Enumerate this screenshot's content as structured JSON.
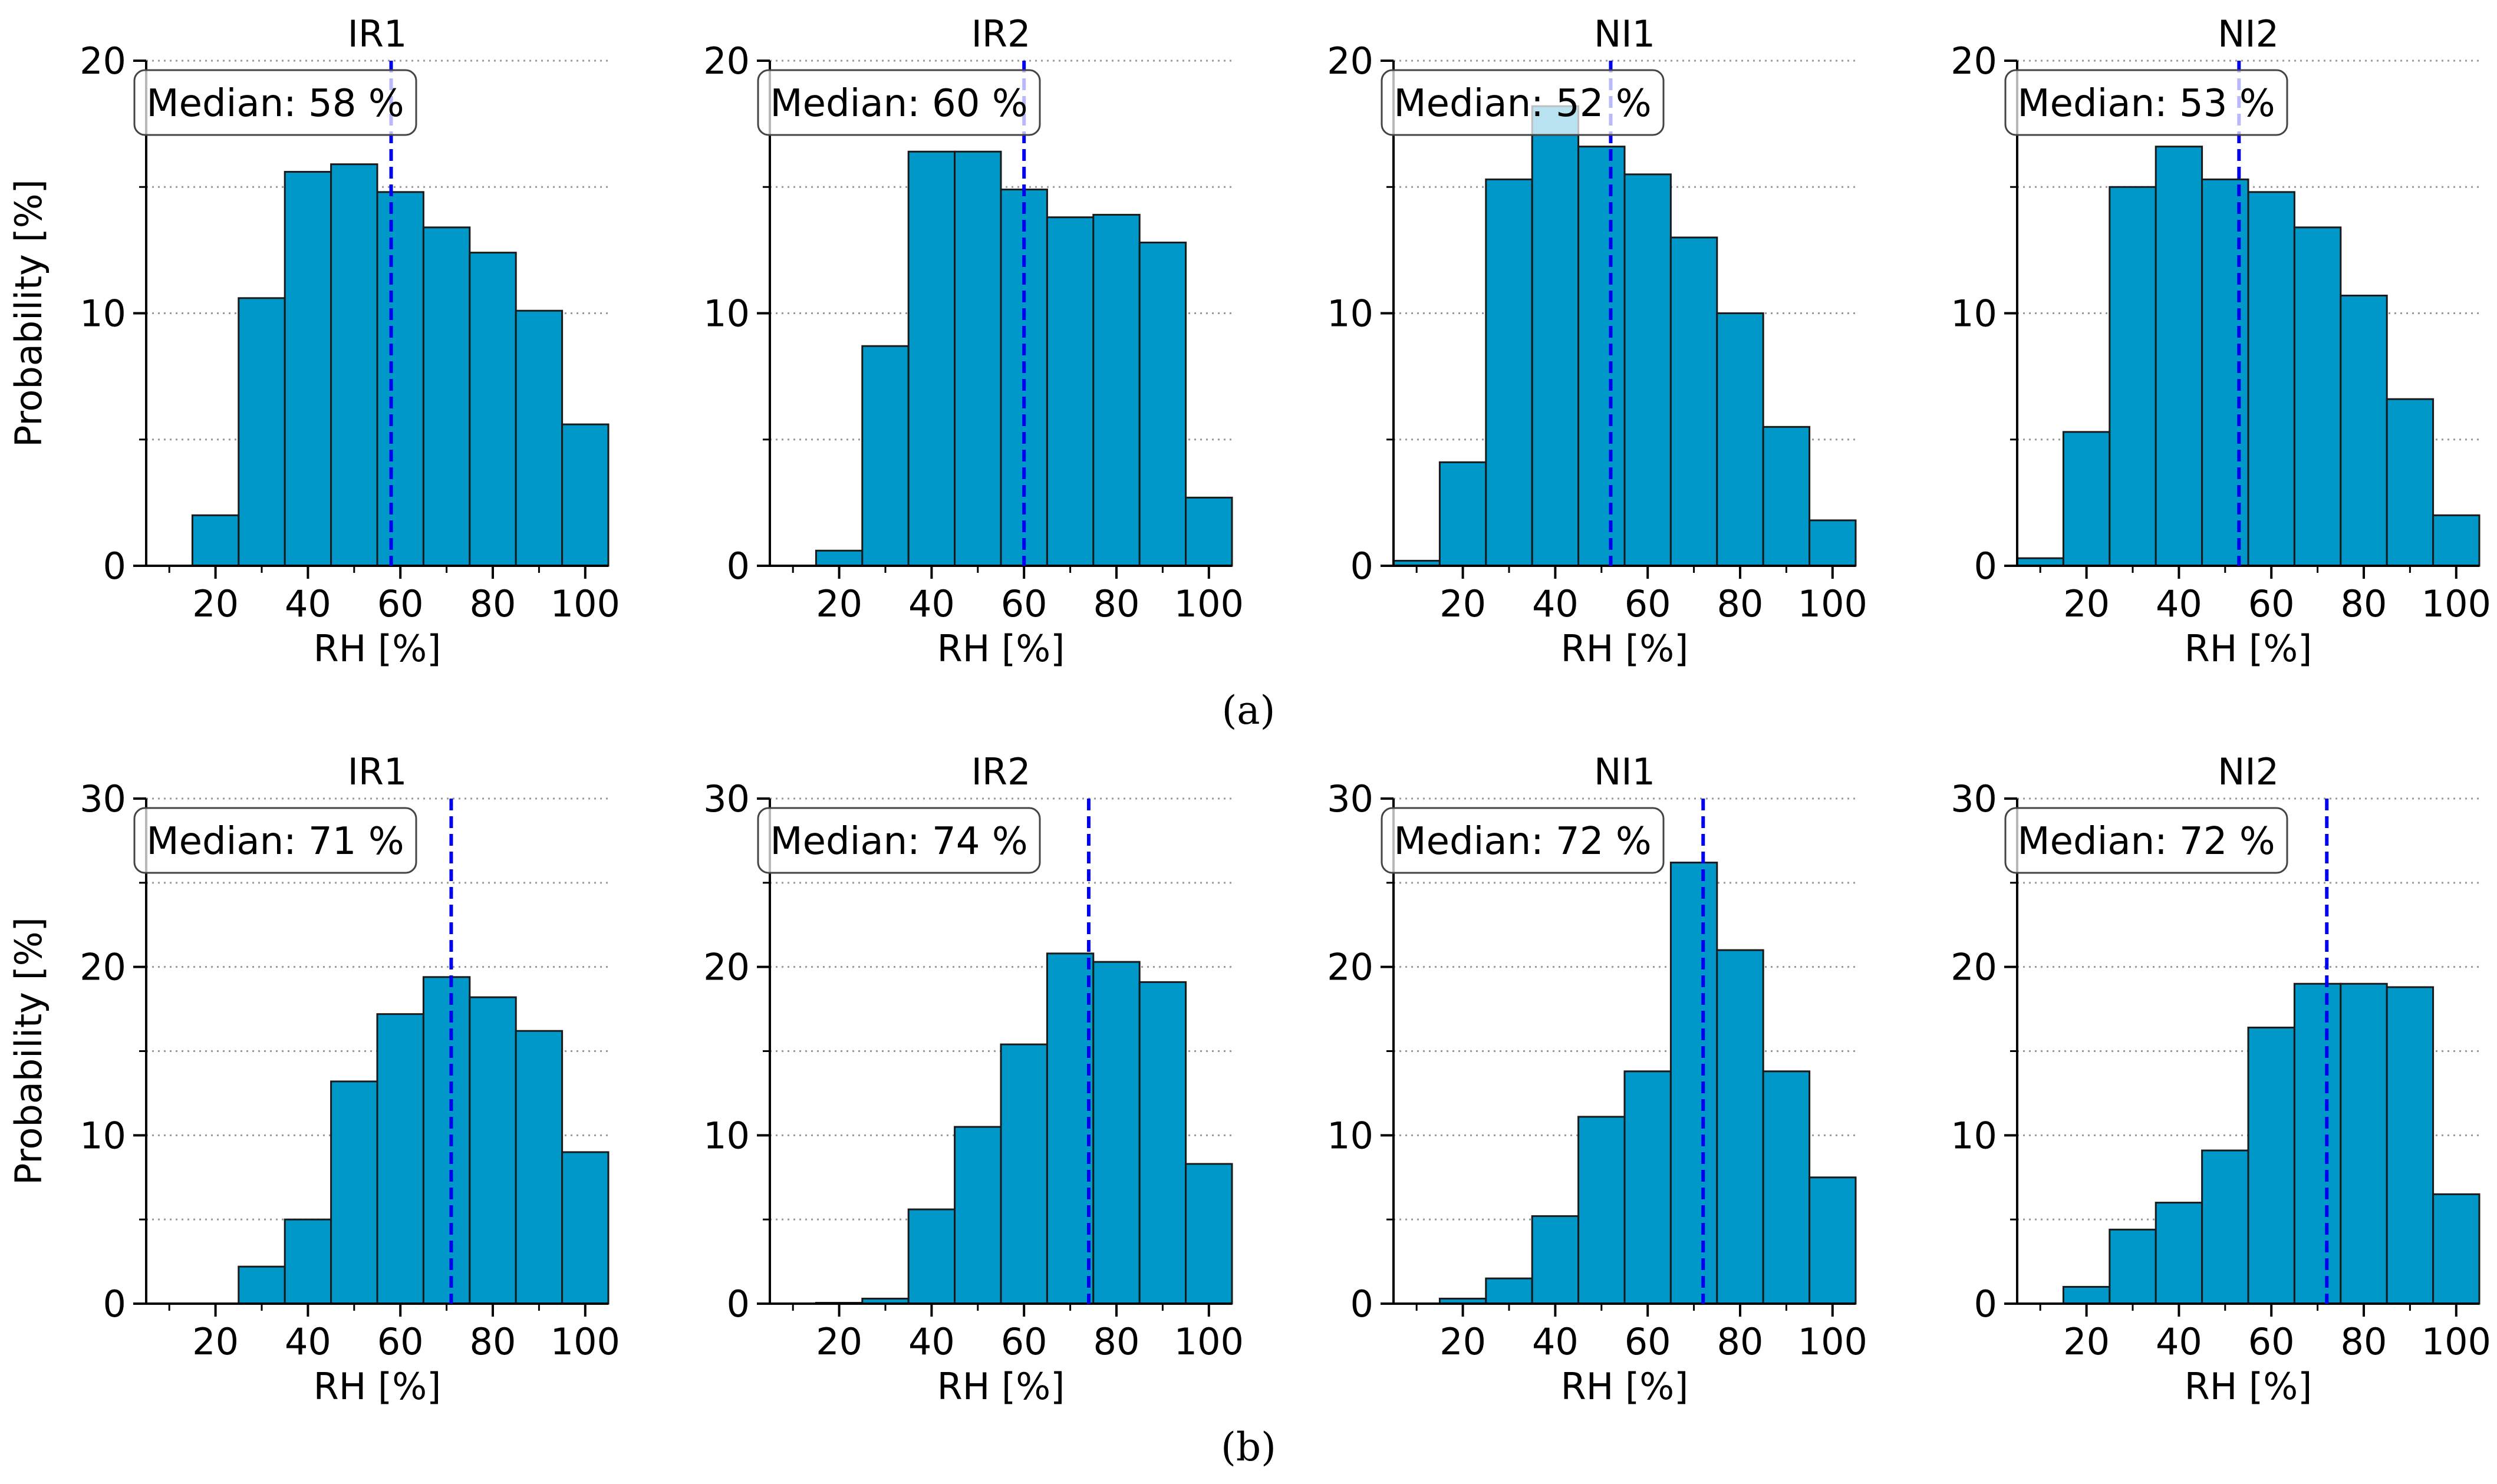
{
  "styles": {
    "bar_fill": "#0098C8",
    "bar_stroke": "#1a1a1a",
    "median_line": "#0000EE",
    "grid": "#999999"
  },
  "captions": {
    "a": "(a)",
    "b": "(b)"
  },
  "chart_data": [
    {
      "type": "bar",
      "panel": "a",
      "title": "IR1",
      "xlabel": "RH [%]",
      "ylabel": "Probability [%]",
      "xlim": [
        5,
        105
      ],
      "ylim": [
        0,
        20
      ],
      "yticks": [
        0,
        10,
        20
      ],
      "yminor": [
        5,
        15
      ],
      "xticks": [
        20,
        40,
        60,
        80,
        100
      ],
      "bin_edges": [
        5,
        15,
        25,
        35,
        45,
        55,
        65,
        75,
        85,
        95,
        105
      ],
      "values": [
        0,
        2.0,
        10.6,
        15.6,
        15.9,
        14.8,
        13.4,
        12.4,
        10.1,
        5.6
      ],
      "median": 58,
      "median_label": "Median: 58 %",
      "grid": true
    },
    {
      "type": "bar",
      "panel": "a",
      "title": "IR2",
      "xlabel": "RH [%]",
      "ylabel": "",
      "xlim": [
        5,
        105
      ],
      "ylim": [
        0,
        20
      ],
      "yticks": [
        0,
        10,
        20
      ],
      "yminor": [
        5,
        15
      ],
      "xticks": [
        20,
        40,
        60,
        80,
        100
      ],
      "bin_edges": [
        5,
        15,
        25,
        35,
        45,
        55,
        65,
        75,
        85,
        95,
        105
      ],
      "values": [
        0,
        0.6,
        8.7,
        16.4,
        16.4,
        14.9,
        13.8,
        13.9,
        12.8,
        2.7
      ],
      "median": 60,
      "median_label": "Median: 60 %",
      "grid": true
    },
    {
      "type": "bar",
      "panel": "a",
      "title": "NI1",
      "xlabel": "RH [%]",
      "ylabel": "",
      "xlim": [
        5,
        105
      ],
      "ylim": [
        0,
        20
      ],
      "yticks": [
        0,
        10,
        20
      ],
      "yminor": [
        5,
        15
      ],
      "xticks": [
        20,
        40,
        60,
        80,
        100
      ],
      "bin_edges": [
        5,
        15,
        25,
        35,
        45,
        55,
        65,
        75,
        85,
        95,
        105
      ],
      "values": [
        0.2,
        4.1,
        15.3,
        18.2,
        16.6,
        15.5,
        13.0,
        10.0,
        5.5,
        1.8
      ],
      "median": 52,
      "median_label": "Median: 52 %",
      "grid": true
    },
    {
      "type": "bar",
      "panel": "a",
      "title": "NI2",
      "xlabel": "RH [%]",
      "ylabel": "",
      "xlim": [
        5,
        105
      ],
      "ylim": [
        0,
        20
      ],
      "yticks": [
        0,
        10,
        20
      ],
      "yminor": [
        5,
        15
      ],
      "xticks": [
        20,
        40,
        60,
        80,
        100
      ],
      "bin_edges": [
        5,
        15,
        25,
        35,
        45,
        55,
        65,
        75,
        85,
        95,
        105
      ],
      "values": [
        0.3,
        5.3,
        15.0,
        16.6,
        15.3,
        14.8,
        13.4,
        10.7,
        6.6,
        2.0
      ],
      "median": 53,
      "median_label": "Median: 53 %",
      "grid": true
    },
    {
      "type": "bar",
      "panel": "b",
      "title": "IR1",
      "xlabel": "RH [%]",
      "ylabel": "Probability [%]",
      "xlim": [
        5,
        105
      ],
      "ylim": [
        0,
        30
      ],
      "yticks": [
        0,
        10,
        20,
        30
      ],
      "yminor": [
        5,
        15,
        25
      ],
      "xticks": [
        20,
        40,
        60,
        80,
        100
      ],
      "bin_edges": [
        5,
        15,
        25,
        35,
        45,
        55,
        65,
        75,
        85,
        95,
        105
      ],
      "values": [
        0,
        0,
        2.2,
        5.0,
        13.2,
        17.2,
        19.4,
        18.2,
        16.2,
        9.0
      ],
      "median": 71,
      "median_label": "Median: 71 %",
      "grid": true
    },
    {
      "type": "bar",
      "panel": "b",
      "title": "IR2",
      "xlabel": "RH [%]",
      "ylabel": "",
      "xlim": [
        5,
        105
      ],
      "ylim": [
        0,
        30
      ],
      "yticks": [
        0,
        10,
        20,
        30
      ],
      "yminor": [
        5,
        15,
        25
      ],
      "xticks": [
        20,
        40,
        60,
        80,
        100
      ],
      "bin_edges": [
        5,
        15,
        25,
        35,
        45,
        55,
        65,
        75,
        85,
        95,
        105
      ],
      "values": [
        0,
        0.05,
        0.3,
        5.6,
        10.5,
        15.4,
        20.8,
        20.3,
        19.1,
        8.3
      ],
      "median": 74,
      "median_label": "Median: 74 %",
      "grid": true
    },
    {
      "type": "bar",
      "panel": "b",
      "title": "NI1",
      "xlabel": "RH [%]",
      "ylabel": "",
      "xlim": [
        5,
        105
      ],
      "ylim": [
        0,
        30
      ],
      "yticks": [
        0,
        10,
        20,
        30
      ],
      "yminor": [
        5,
        15,
        25
      ],
      "xticks": [
        20,
        40,
        60,
        80,
        100
      ],
      "bin_edges": [
        5,
        15,
        25,
        35,
        45,
        55,
        65,
        75,
        85,
        95,
        105
      ],
      "values": [
        0,
        0.3,
        1.5,
        5.2,
        11.1,
        13.8,
        26.2,
        21.0,
        13.8,
        7.5
      ],
      "median": 72,
      "median_label": "Median: 72 %",
      "grid": true
    },
    {
      "type": "bar",
      "panel": "b",
      "title": "NI2",
      "xlabel": "RH [%]",
      "ylabel": "",
      "xlim": [
        5,
        105
      ],
      "ylim": [
        0,
        30
      ],
      "yticks": [
        0,
        10,
        20,
        30
      ],
      "yminor": [
        5,
        15,
        25
      ],
      "xticks": [
        20,
        40,
        60,
        80,
        100
      ],
      "bin_edges": [
        5,
        15,
        25,
        35,
        45,
        55,
        65,
        75,
        85,
        95,
        105
      ],
      "values": [
        0,
        1.0,
        4.4,
        6.0,
        9.1,
        16.4,
        19.0,
        19.0,
        18.8,
        6.5
      ],
      "median": 72,
      "median_label": "Median: 72 %",
      "grid": true
    }
  ]
}
